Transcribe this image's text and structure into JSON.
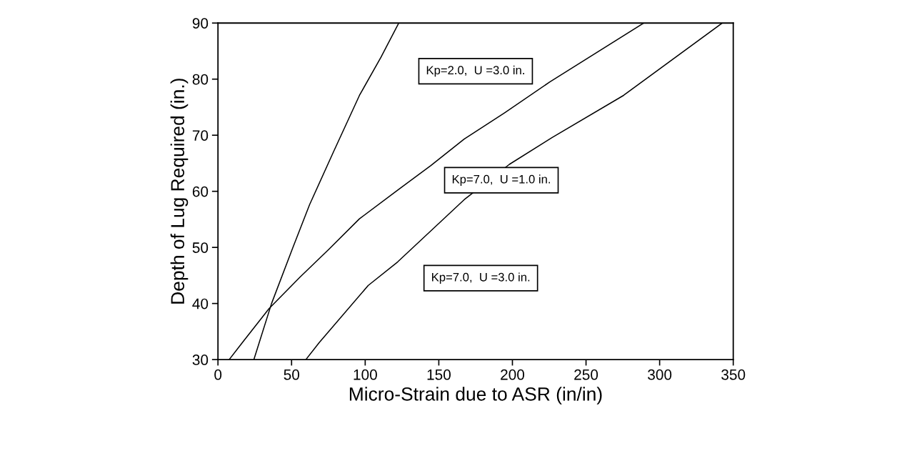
{
  "chart_data": {
    "type": "line",
    "xlabel": "Micro-Strain due to ASR (in/in)",
    "ylabel": "Depth of Lug Required (in.)",
    "xlim": [
      0,
      350
    ],
    "xticks": [
      0,
      50,
      100,
      150,
      200,
      250,
      300,
      350
    ],
    "ylim": [
      30,
      90
    ],
    "yticks": [
      30,
      40,
      50,
      60,
      70,
      80,
      90
    ],
    "grid": false,
    "legend": false,
    "marker": "none",
    "line_style": "solid",
    "series": [
      {
        "name": "Kp=2.0,  U =3.0 in.",
        "color": "#000000",
        "x": [
          24.4,
          28,
          36.4,
          50.9,
          62.2,
          78.4,
          96.1,
          110.7,
          122.8
        ],
        "values": [
          30,
          33,
          40,
          50,
          57.6,
          67,
          77.1,
          83.9,
          90
        ]
      },
      {
        "name": "Kp=7.0,  U =1.0 in.",
        "color": "#000000",
        "x": [
          7.6,
          16.5,
          34.7,
          55.7,
          75.1,
          96.1,
          122,
          144.6,
          167.2,
          194.7,
          225.4,
          289.2
        ],
        "values": [
          30,
          33,
          39.1,
          44.7,
          49.6,
          55.1,
          60.2,
          64.6,
          69.3,
          74,
          79.5,
          90
        ]
      },
      {
        "name": "Kp=7.0,  U =3.0 in.",
        "color": "#000000",
        "x": [
          59.7,
          68.7,
          102,
          122,
          167.2,
          197.9,
          227,
          275.5,
          342.5
        ],
        "values": [
          30,
          33,
          43.2,
          47.4,
          58.5,
          64.8,
          69.6,
          77.1,
          90
        ]
      }
    ]
  }
}
